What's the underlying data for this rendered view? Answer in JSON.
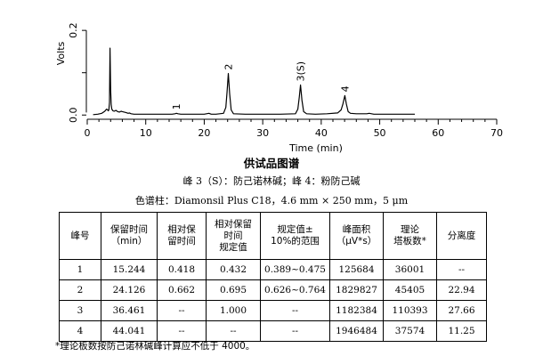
{
  "chart_data": {
    "type": "line",
    "xlabel": "Time (min)",
    "ylabel": "Volts",
    "xlim": [
      0,
      70
    ],
    "ylim": [
      -0.01,
      0.255
    ],
    "x_ticks": [
      "0",
      "10",
      "20",
      "30",
      "40",
      "50",
      "60",
      "70"
    ],
    "y_ticks": [
      "0.0",
      "0.2"
    ],
    "peak_labels": [
      "1",
      "2",
      "3(S)",
      "4"
    ],
    "series": [
      {
        "x": [
          1.0,
          1.8,
          2.5,
          3.0,
          3.3,
          3.5,
          3.6,
          3.7,
          3.8,
          3.9,
          4.0,
          4.1,
          4.2,
          4.4,
          4.6,
          4.9,
          5.2,
          5.5,
          5.8,
          6.0,
          6.3,
          6.6,
          7.0,
          7.2,
          7.5,
          8.0,
          9.0,
          10.0,
          11.5,
          13.0,
          14.5,
          15.0,
          15.244,
          15.5,
          16.0,
          18.0,
          20.0,
          20.8,
          21.2,
          22.0,
          23.3,
          23.7,
          23.9,
          24.126,
          24.35,
          24.6,
          25.0,
          27.0,
          30.0,
          33.0,
          35.6,
          36.0,
          36.25,
          36.461,
          36.7,
          37.0,
          37.5,
          39.0,
          41.0,
          42.8,
          43.4,
          43.7,
          44.041,
          44.3,
          44.6,
          45.0,
          46.0,
          47.8,
          48.2,
          49.0,
          52.0,
          56.0
        ],
        "y": [
          0.001,
          0.002,
          0.004,
          0.009,
          0.014,
          0.012,
          0.01,
          0.012,
          0.03,
          0.158,
          0.06,
          0.025,
          0.014,
          0.01,
          0.009,
          0.011,
          0.008,
          0.007,
          0.009,
          0.008,
          0.007,
          0.006,
          0.004,
          0.005,
          0.003,
          0.002,
          0.002,
          0.002,
          0.002,
          0.002,
          0.002,
          0.003,
          0.004,
          0.003,
          0.002,
          0.002,
          0.002,
          0.004,
          0.002,
          0.002,
          0.004,
          0.018,
          0.055,
          0.098,
          0.05,
          0.012,
          0.003,
          0.002,
          0.002,
          0.002,
          0.003,
          0.014,
          0.042,
          0.071,
          0.035,
          0.008,
          0.003,
          0.002,
          0.003,
          0.005,
          0.012,
          0.026,
          0.046,
          0.026,
          0.008,
          0.004,
          0.003,
          0.003,
          0.004,
          0.002,
          0.002,
          0.002
        ]
      }
    ]
  },
  "caption": {
    "title": "供试品图谱",
    "peaks": "峰 3（S）：防己诺林碱；峰 4：粉防己碱",
    "column": "色谱柱：Diamonsil Plus C18，4.6 mm × 250 mm，5 μm"
  },
  "table": {
    "headers": [
      [
        "峰号"
      ],
      [
        "保留时间",
        "（min）"
      ],
      [
        "相对保",
        "留时间"
      ],
      [
        "相对保留",
        "时间",
        "规定值"
      ],
      [
        "规定值±",
        "10%的范围"
      ],
      [
        "峰面积",
        "（μV*s）"
      ],
      [
        "理论",
        "塔板数*"
      ],
      [
        "分离度"
      ]
    ],
    "rows": [
      [
        "1",
        "15.244",
        "0.418",
        "0.432",
        "0.389~0.475",
        "125684",
        "36001",
        "--"
      ],
      [
        "2",
        "24.126",
        "0.662",
        "0.695",
        "0.626~0.764",
        "1829827",
        "45405",
        "22.94"
      ],
      [
        "3",
        "36.461",
        "--",
        "1.000",
        "--",
        "1182384",
        "110393",
        "27.66"
      ],
      [
        "4",
        "44.041",
        "--",
        "--",
        "--",
        "1946484",
        "37574",
        "11.25"
      ]
    ]
  },
  "footnote": "*理论板数按防己诺林碱峰计算应不低于 4000。"
}
